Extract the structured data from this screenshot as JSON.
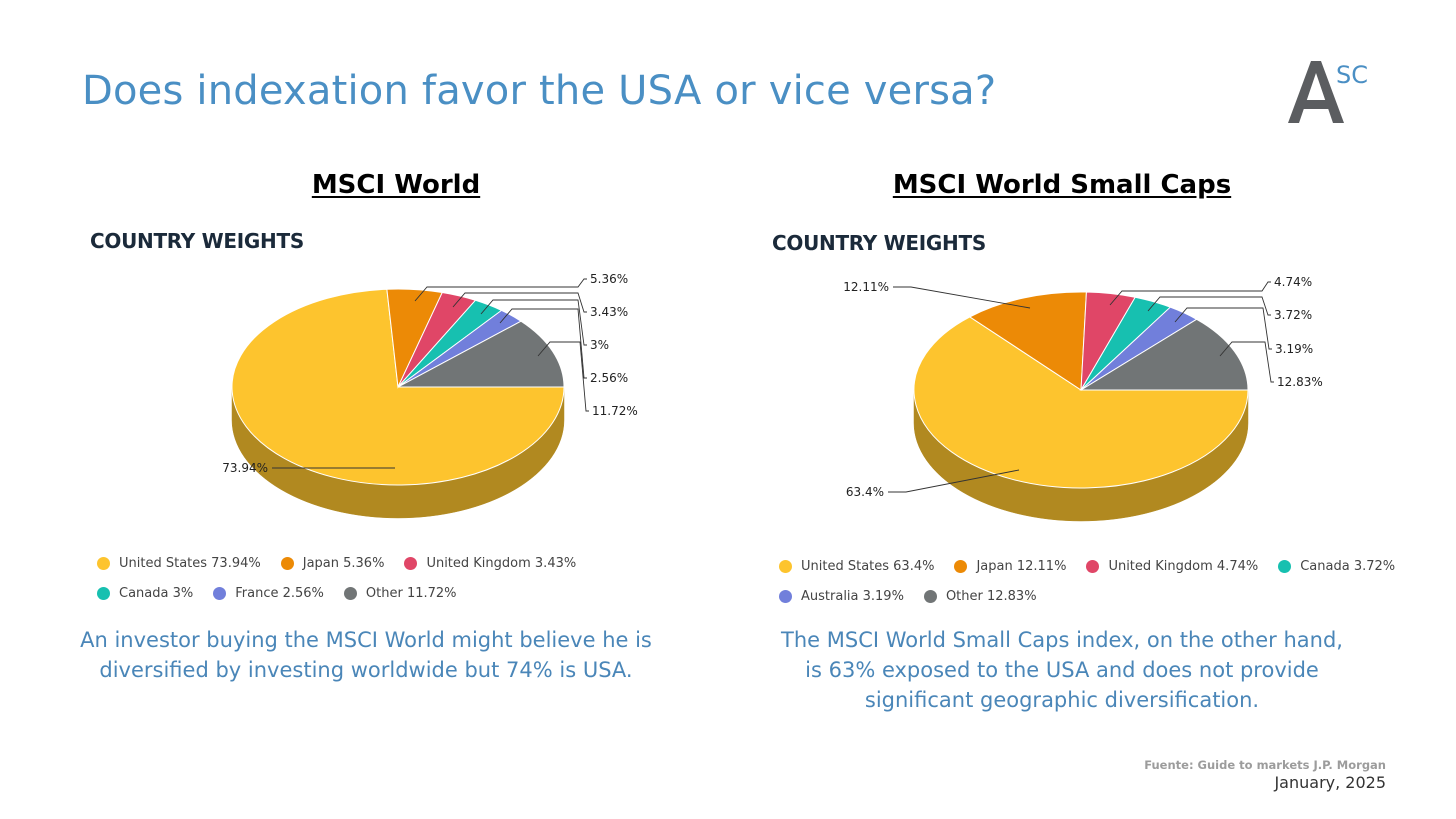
{
  "title": "Does indexation favor the USA or vice versa?",
  "logo": {
    "letter": "A",
    "superscript": "SC"
  },
  "source": "Fuente: Guide to markets J.P. Morgan",
  "date": "January, 2025",
  "panels": [
    {
      "section_title": "MSCI World",
      "subtitle": "COUNTRY WEIGHTS",
      "caption_lines": [
        "An investor buying the MSCI World might believe he is",
        "diversified by investing worldwide but 74% is USA."
      ]
    },
    {
      "section_title": "MSCI World Small Caps",
      "subtitle": "COUNTRY WEIGHTS",
      "caption_lines": [
        "The MSCI World Small Caps index, on the other hand,",
        "is 63% exposed to the USA and does not provide",
        "significant geographic diversification."
      ]
    }
  ],
  "colors": {
    "United States": "#fdc42e",
    "Japan": "#ec8a06",
    "United Kingdom": "#e04667",
    "Canada": "#17c0b0",
    "France": "#717fdb",
    "Australia": "#717fdb",
    "Other": "#717576"
  },
  "chart_data": [
    {
      "type": "pie",
      "title": "COUNTRY WEIGHTS",
      "categories": [
        "United States",
        "Japan",
        "United Kingdom",
        "Canada",
        "France",
        "Other"
      ],
      "values": [
        73.94,
        5.36,
        3.43,
        3,
        2.56,
        11.72
      ],
      "data_labels": [
        "73.94%",
        "5.36%",
        "3.43%",
        "3%",
        "2.56%",
        "11.72%"
      ],
      "legend": [
        "United States 73.94%",
        "Japan 5.36%",
        "United Kingdom 3.43%",
        "Canada 3%",
        "France 2.56%",
        "Other 11.72%"
      ],
      "legend_position": "bottom"
    },
    {
      "type": "pie",
      "title": "COUNTRY WEIGHTS",
      "categories": [
        "United States",
        "Japan",
        "United Kingdom",
        "Canada",
        "Australia",
        "Other"
      ],
      "values": [
        63.4,
        12.11,
        4.74,
        3.72,
        3.19,
        12.83
      ],
      "data_labels": [
        "63.4%",
        "12.11%",
        "4.74%",
        "3.72%",
        "3.19%",
        "12.83%"
      ],
      "legend": [
        "United States 63.4%",
        "Japan 12.11%",
        "United Kingdom 4.74%",
        "Canada 3.72%",
        "Australia 3.19%",
        "Other 12.83%"
      ],
      "legend_position": "bottom"
    }
  ]
}
